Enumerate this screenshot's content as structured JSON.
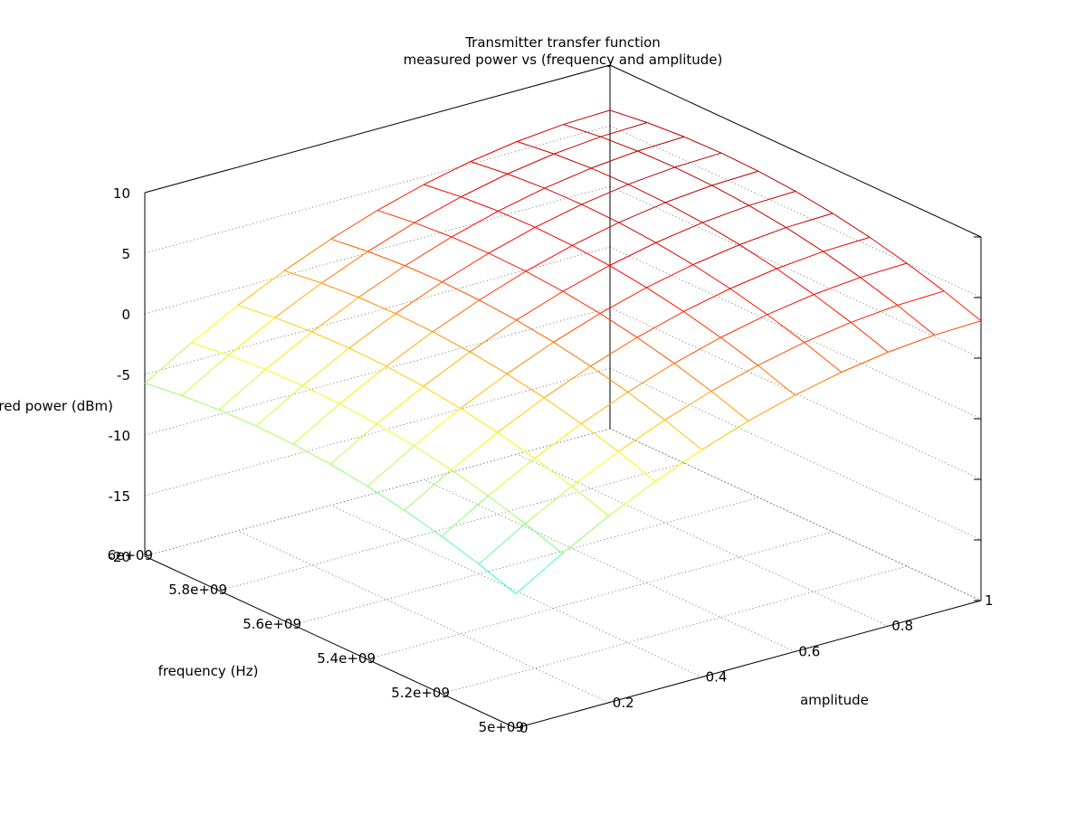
{
  "chart_data": {
    "type": "surface",
    "title": "Transmitter transfer function",
    "subtitle": "measured power vs (frequency and amplitude)",
    "xlabel": "amplitude",
    "ylabel": "frequency (Hz)",
    "zlabel": "measured power (dBm)",
    "x": [
      0,
      0.1,
      0.2,
      0.3,
      0.4,
      0.5,
      0.6,
      0.7,
      0.8,
      0.9,
      1.0
    ],
    "y": [
      5000000000,
      5100000000,
      5200000000,
      5300000000,
      5400000000,
      5500000000,
      5600000000,
      5700000000,
      5800000000,
      5900000000,
      6000000000
    ],
    "xlim": [
      0,
      1
    ],
    "ylim": [
      5000000000,
      6000000000
    ],
    "zlim": [
      -20,
      10
    ],
    "x_ticks": [
      "0",
      "0.2",
      "0.4",
      "0.6",
      "0.8",
      "1"
    ],
    "y_ticks": [
      "5e+09",
      "5.2e+09",
      "5.4e+09",
      "5.6e+09",
      "5.8e+09",
      "6e+09"
    ],
    "z_ticks": [
      "-20",
      "-15",
      "-10",
      "-5",
      "0",
      "5",
      "10"
    ],
    "grid": true,
    "colormap": [
      "#00008f",
      "#0000ff",
      "#0070ff",
      "#00ffff",
      "#7fff7f",
      "#ffff00",
      "#ff8f00",
      "#ff0000",
      "#8f0000"
    ]
  }
}
